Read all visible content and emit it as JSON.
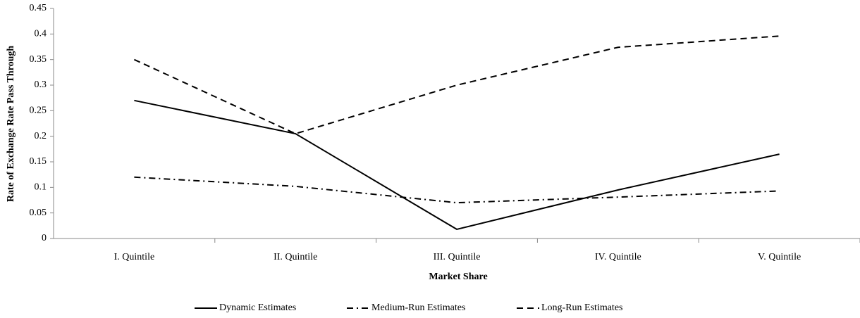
{
  "chart_data": {
    "type": "line",
    "x_label": "Market Share",
    "y_label": "Rate of Exchange Rate Pass Through",
    "categories": [
      "I. Quintile",
      "II. Quintile",
      "III. Quintile",
      "IV. Quintile",
      "V. Quintile"
    ],
    "series": [
      {
        "name": "Dynamic Estimates",
        "color": "#000000",
        "dash": "solid",
        "values": [
          0.27,
          0.205,
          0.018,
          0.095,
          0.165
        ]
      },
      {
        "name": "Medium-Run Estimates",
        "color": "#000000",
        "dash": "dash-dot",
        "values": [
          0.12,
          0.102,
          0.07,
          0.081,
          0.093
        ]
      },
      {
        "name": "Long-Run Estimates",
        "color": "#000000",
        "dash": "dash",
        "values": [
          0.35,
          0.205,
          0.3,
          0.374,
          0.396
        ]
      }
    ],
    "ylim": [
      0,
      0.45
    ],
    "yticks": [
      0,
      0.05,
      0.1,
      0.15,
      0.2,
      0.25,
      0.3,
      0.35,
      0.4,
      0.45
    ],
    "grid": false,
    "legend": "bottom"
  }
}
